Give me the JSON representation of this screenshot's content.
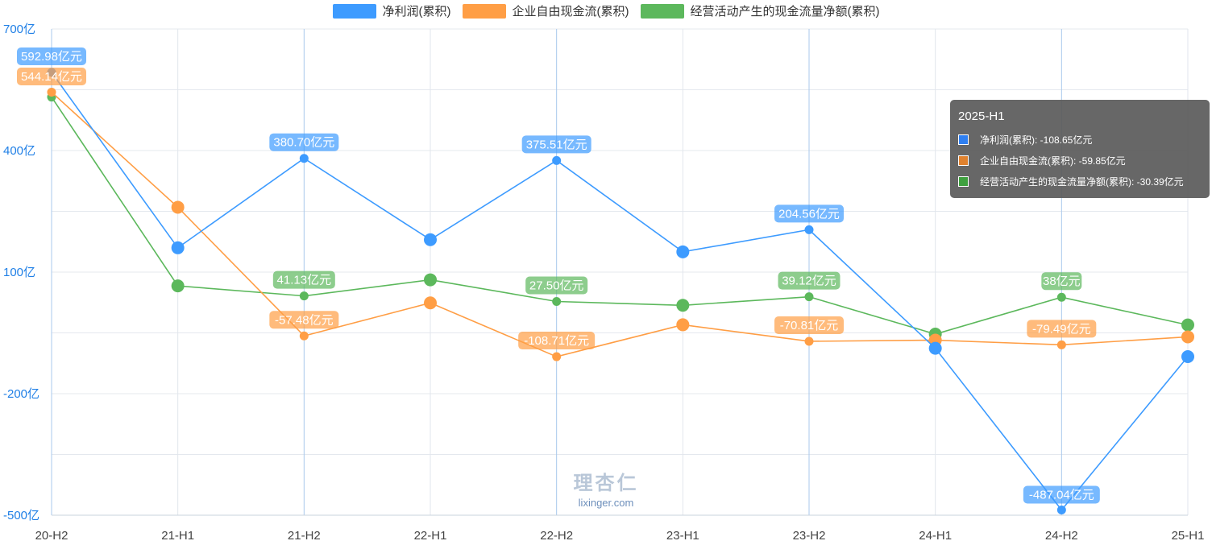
{
  "legend": [
    {
      "label": "净利润(累积)",
      "color": "#3d9bff"
    },
    {
      "label": "企业自由现金流(累积)",
      "color": "#ff9e45"
    },
    {
      "label": "经营活动产生的现金流量净额(累积)",
      "color": "#5cb85c"
    }
  ],
  "tooltip": {
    "title": "2025-H1",
    "rows": [
      {
        "text": "净利润(累积): -108.65亿元",
        "color": "#2f7ff0"
      },
      {
        "text": "企业自由现金流(累积): -59.85亿元",
        "color": "#e0822f"
      },
      {
        "text": "经营活动产生的现金流量净额(累积): -30.39亿元",
        "color": "#3fa03f"
      }
    ]
  },
  "watermark": {
    "cn": "理杏仁",
    "en": "lixinger.com"
  },
  "chart_data": {
    "type": "line",
    "categories": [
      "20-H2",
      "21-H1",
      "21-H2",
      "22-H1",
      "22-H2",
      "23-H1",
      "23-H2",
      "24-H1",
      "24-H2",
      "25-H1"
    ],
    "yticks": [
      "700亿",
      "400亿",
      "100亿",
      "-200亿",
      "-500亿"
    ],
    "ytick_values": [
      700,
      400,
      100,
      -200,
      -500
    ],
    "ylim": [
      -500,
      700
    ],
    "grid": true,
    "legend_position": "top",
    "series": [
      {
        "name": "净利润(累积)",
        "color": "#3d9bff",
        "values": [
          592.98,
          160,
          380.7,
          180,
          375.51,
          150,
          204.56,
          -88,
          -487.04,
          -108.65
        ],
        "labels": [
          "592.98亿元",
          null,
          "380.70亿元",
          null,
          "375.51亿元",
          null,
          "204.56亿元",
          null,
          "-487.04亿元",
          null
        ]
      },
      {
        "name": "企业自由现金流(累积)",
        "color": "#ff9e45",
        "values": [
          544.14,
          260,
          -57.48,
          24,
          -108.71,
          -30,
          -70.81,
          -68,
          -79.49,
          -59.85
        ],
        "labels": [
          "544.14亿元",
          null,
          "-57.48亿元",
          null,
          "-108.71亿元",
          null,
          "-70.81亿元",
          null,
          "-79.49亿元",
          null
        ]
      },
      {
        "name": "经营活动产生的现金流量净额(累积)",
        "color": "#5cb85c",
        "values": [
          532,
          66,
          41.13,
          81,
          27.5,
          18,
          39.12,
          -53,
          38,
          -30.39
        ],
        "labels": [
          null,
          null,
          "41.13亿元",
          null,
          "27.50亿元",
          null,
          "39.12亿元",
          null,
          "38亿元",
          null
        ]
      }
    ]
  }
}
